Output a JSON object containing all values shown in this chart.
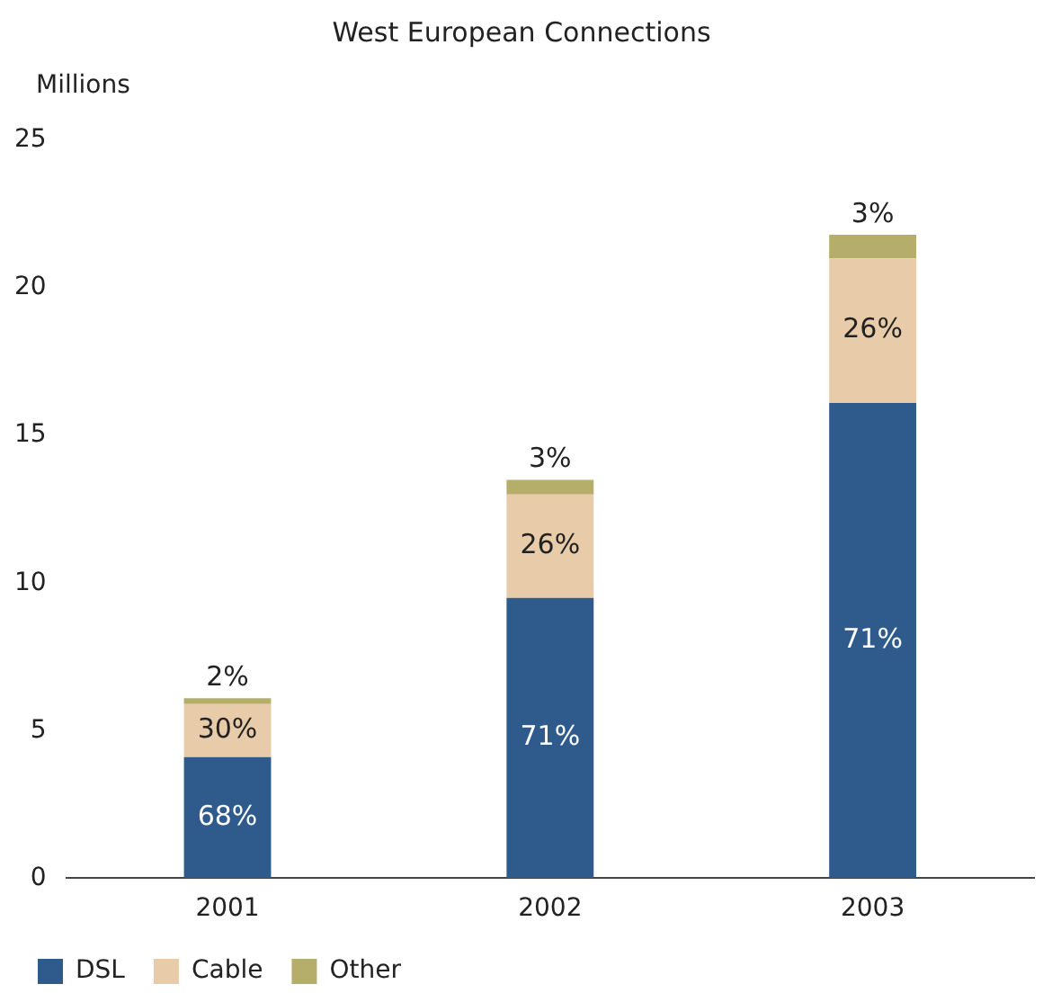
{
  "chart_data": {
    "type": "bar",
    "title": "West European Connections",
    "ylabel": "Millions",
    "categories": [
      "2001",
      "2002",
      "2003"
    ],
    "stacked": true,
    "ylim": [
      0,
      25
    ],
    "yticks": [
      0,
      5,
      10,
      15,
      20,
      25
    ],
    "grid": false,
    "legend": "bottom left",
    "series": [
      {
        "name": "DSL",
        "color": "#2e5a8c",
        "values": [
          4.1,
          9.5,
          16.1
        ]
      },
      {
        "name": "Cable",
        "color": "#e8cba8",
        "values": [
          1.8,
          3.5,
          4.9
        ]
      },
      {
        "name": "Other",
        "color": "#b5ad6a",
        "values": [
          0.2,
          0.5,
          0.8
        ]
      }
    ],
    "annotations": [
      "68%",
      "30%",
      "2%",
      "71%",
      "26%",
      "3%",
      "71%",
      "26%",
      "3%"
    ]
  }
}
